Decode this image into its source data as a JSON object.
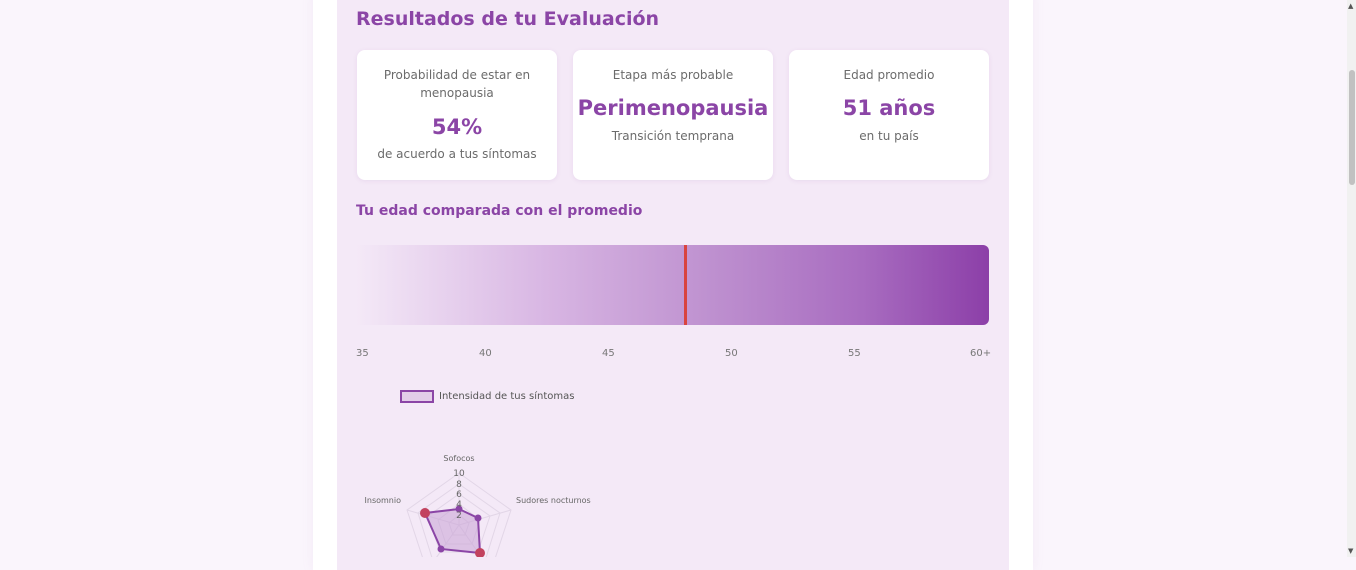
{
  "results": {
    "title": "Resultados de tu Evaluación",
    "cards": [
      {
        "label": "Probabilidad de estar en menopausia",
        "value": "54%",
        "sub": "de acuerdo a tus síntomas"
      },
      {
        "label": "Etapa más probable",
        "value": "Perimenopausia",
        "sub": "Transición temprana"
      },
      {
        "label": "Edad promedio",
        "value": "51 años",
        "sub": "en tu país"
      }
    ]
  },
  "age_comparison": {
    "title": "Tu edad comparada con el promedio",
    "ticks": [
      "35",
      "40",
      "45",
      "50",
      "55",
      "60+"
    ],
    "user_age_marker": 48.1
  },
  "symptoms_chart": {
    "legend": "Intensidad de tus síntomas",
    "axes_visible": [
      "Sofocos",
      "Sudores nocturnos",
      "Insomnio"
    ],
    "scale_ticks": [
      "10",
      "8",
      "6",
      "4",
      "2"
    ],
    "colors": {
      "accent": "#8b45a6",
      "marker": "#d9443f",
      "fill": "#e3cde9"
    }
  }
}
